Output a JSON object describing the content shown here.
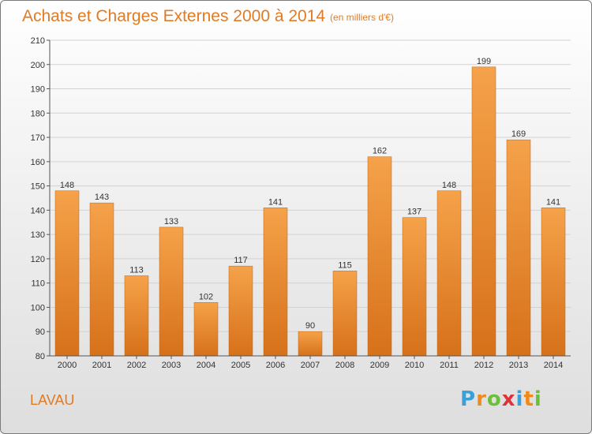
{
  "title": "Achats et Charges Externes 2000 à 2014",
  "subtitle": "(en milliers d'€)",
  "location": "LAVAU",
  "brand": {
    "letters": [
      "P",
      "r",
      "o",
      "x",
      "i",
      "t",
      "i"
    ],
    "colors": [
      "#3aa0d8",
      "#f08a1c",
      "#6cbf3a",
      "#e0323a",
      "#3aa0d8",
      "#f08a1c",
      "#6cbf3a"
    ]
  },
  "chart_data": {
    "type": "bar",
    "categories": [
      "2000",
      "2001",
      "2002",
      "2003",
      "2004",
      "2005",
      "2006",
      "2007",
      "2008",
      "2009",
      "2010",
      "2011",
      "2012",
      "2013",
      "2014"
    ],
    "values": [
      148,
      143,
      113,
      133,
      102,
      117,
      141,
      90,
      115,
      162,
      137,
      148,
      199,
      169,
      141
    ],
    "ylim": [
      80,
      210
    ],
    "yticks": [
      80,
      90,
      100,
      110,
      120,
      130,
      140,
      150,
      160,
      170,
      180,
      190,
      200,
      210
    ],
    "grid": true,
    "bar_color": "#e8862a"
  }
}
